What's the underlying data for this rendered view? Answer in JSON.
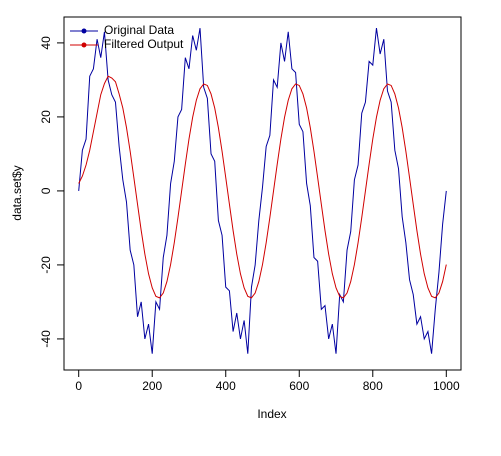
{
  "chart_data": {
    "type": "line",
    "xlabel": "Index",
    "ylabel": "data.set$y",
    "x": [
      0,
      10,
      20,
      30,
      40,
      50,
      60,
      70,
      80,
      90,
      100,
      110,
      120,
      130,
      140,
      150,
      160,
      170,
      180,
      190,
      200,
      210,
      220,
      230,
      240,
      250,
      260,
      270,
      280,
      290,
      300,
      310,
      320,
      330,
      340,
      350,
      360,
      370,
      380,
      390,
      400,
      410,
      420,
      430,
      440,
      450,
      460,
      470,
      480,
      490,
      500,
      510,
      520,
      530,
      540,
      550,
      560,
      570,
      580,
      590,
      600,
      610,
      620,
      630,
      640,
      650,
      660,
      670,
      680,
      690,
      700,
      710,
      720,
      730,
      740,
      750,
      760,
      770,
      780,
      790,
      800,
      810,
      820,
      830,
      840,
      850,
      860,
      870,
      880,
      890,
      900,
      910,
      920,
      930,
      940,
      950,
      960,
      970,
      980,
      990,
      1000
    ],
    "series": [
      {
        "name": "Original Data",
        "color": "#0000a0",
        "values": [
          0,
          11,
          14,
          31,
          33,
          41,
          36,
          43,
          30,
          26,
          24,
          12,
          3,
          -3,
          -16,
          -20,
          -34,
          -30,
          -40,
          -36,
          -44,
          -30,
          -32,
          -18,
          -12,
          2,
          8,
          20,
          22,
          36,
          33,
          42,
          38,
          44,
          28,
          25,
          10,
          8,
          -8,
          -12,
          -26,
          -27,
          -38,
          -33,
          -40,
          -35,
          -44,
          -26,
          -20,
          -8,
          1,
          12,
          15,
          30,
          28,
          40,
          35,
          43,
          33,
          32,
          18,
          16,
          2,
          -4,
          -18,
          -19,
          -32,
          -31,
          -40,
          -36,
          -44,
          -28,
          -30,
          -16,
          -11,
          3,
          7,
          21,
          24,
          35,
          34,
          44,
          37,
          41,
          27,
          24,
          11,
          6,
          -7,
          -14,
          -24,
          -28,
          -36,
          -34,
          -40,
          -38,
          -44,
          -32,
          -22,
          -9,
          0
        ]
      },
      {
        "name": "Filtered Output",
        "color": "#d00000",
        "values": [
          2,
          4,
          7,
          11,
          16,
          21,
          26,
          29,
          31,
          30.5,
          29.5,
          26.2,
          22.4,
          17.1,
          10.7,
          3.6,
          -3.6,
          -10.7,
          -17.1,
          -22.4,
          -26.2,
          -28.5,
          -28.9,
          -27.6,
          -24.5,
          -19.9,
          -14.0,
          -7.2,
          0,
          7.2,
          14.0,
          19.9,
          24.5,
          27.6,
          28.9,
          28.5,
          26.2,
          22.4,
          17.1,
          10.7,
          3.6,
          -3.6,
          -10.7,
          -17.1,
          -22.4,
          -26.2,
          -28.5,
          -28.9,
          -27.6,
          -24.5,
          -19.9,
          -14.0,
          -7.2,
          0,
          7.2,
          14.0,
          19.9,
          24.5,
          27.6,
          28.9,
          28.5,
          26.2,
          22.4,
          17.1,
          10.7,
          3.6,
          -3.6,
          -10.7,
          -17.1,
          -22.4,
          -26.2,
          -28.5,
          -28.9,
          -27.6,
          -24.5,
          -19.9,
          -14.0,
          -7.2,
          0,
          7.2,
          14.0,
          19.9,
          24.5,
          27.6,
          28.9,
          28.5,
          26.2,
          22.4,
          17.1,
          10.7,
          3.6,
          -3.6,
          -10.7,
          -17.1,
          -22.4,
          -26.2,
          -28.5,
          -28.9,
          -27.6,
          -24.5,
          -19.9
        ]
      }
    ],
    "xlim": [
      -40,
      1040
    ],
    "xticks": [
      0,
      200,
      400,
      600,
      800,
      1000
    ],
    "ylim": [
      -48.4,
      47
    ],
    "yticks": [
      -40,
      -20,
      0,
      20,
      40
    ],
    "legend": "topleft"
  }
}
